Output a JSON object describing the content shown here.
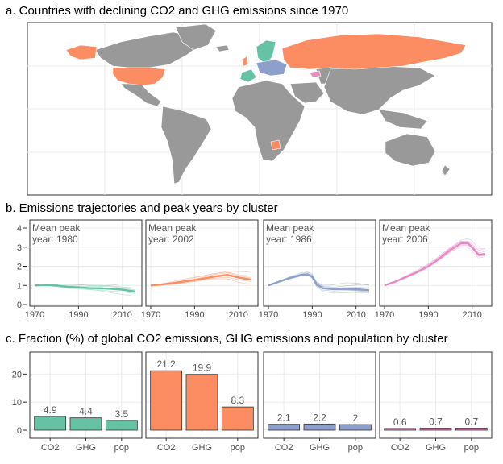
{
  "panel_a": {
    "title": "a. Countries with declining CO2 and GHG emissions since 1970"
  },
  "panel_b": {
    "title": "b. Emissions trajectories and peak years by cluster",
    "peak_label_line1": "Mean peak",
    "x_ticks": [
      "1970",
      "1990",
      "2010"
    ],
    "y_ticks": [
      "0",
      "1",
      "2",
      "3",
      "4"
    ]
  },
  "panel_c": {
    "title": "c. Fraction (%) of global CO2 emissions, GHG emissions and population by cluster",
    "y_ticks": [
      "0",
      "10",
      "20"
    ]
  },
  "colors": {
    "cluster1": "#66c2a5",
    "cluster2": "#fc8d62",
    "cluster3": "#8da0cb",
    "cluster4": "#e78ac3",
    "land": "#999999",
    "grid": "#ebebeb",
    "frame": "#333333"
  },
  "chart_data": [
    {
      "type": "line",
      "panel": "b",
      "x_range": [
        1970,
        2016
      ],
      "ylim": [
        0,
        4
      ],
      "x_ticks": [
        1970,
        1990,
        2010
      ],
      "y_ticks": [
        0,
        1,
        2,
        3,
        4
      ],
      "grid": true,
      "series": [
        {
          "peak_label": "year: 1980",
          "color": "#66c2a5",
          "x": [
            1970,
            1975,
            1980,
            1985,
            1990,
            1995,
            2000,
            2005,
            2010,
            2016
          ],
          "y": [
            1.0,
            1.02,
            1.0,
            0.92,
            0.9,
            0.86,
            0.85,
            0.82,
            0.78,
            0.68
          ]
        },
        {
          "peak_label": "year: 2002",
          "color": "#fc8d62",
          "x": [
            1970,
            1975,
            1980,
            1985,
            1990,
            1995,
            2000,
            2005,
            2010,
            2016
          ],
          "y": [
            1.0,
            1.05,
            1.12,
            1.2,
            1.28,
            1.38,
            1.48,
            1.55,
            1.42,
            1.3
          ]
        },
        {
          "peak_label": "year: 1986",
          "color": "#8da0cb",
          "x": [
            1970,
            1975,
            1980,
            1985,
            1988,
            1990,
            1992,
            1995,
            2000,
            2005,
            2010,
            2016
          ],
          "y": [
            1.0,
            1.2,
            1.4,
            1.55,
            1.58,
            1.45,
            1.05,
            0.85,
            0.8,
            0.82,
            0.8,
            0.75
          ]
        },
        {
          "peak_label": "year: 2006",
          "color": "#e78ac3",
          "x": [
            1970,
            1975,
            1980,
            1985,
            1990,
            1995,
            2000,
            2005,
            2008,
            2010,
            2013,
            2016
          ],
          "y": [
            1.0,
            1.2,
            1.45,
            1.7,
            2.0,
            2.4,
            2.85,
            3.2,
            3.2,
            3.0,
            2.6,
            2.65
          ]
        }
      ]
    },
    {
      "type": "bar",
      "panel": "c",
      "categories": [
        "CO2",
        "GHG",
        "pop"
      ],
      "ylim": [
        0,
        27
      ],
      "y_ticks": [
        0,
        10,
        20
      ],
      "grid": true,
      "series": [
        {
          "color": "#66c2a5",
          "values": [
            4.9,
            4.4,
            3.5
          ],
          "labels": [
            "4.9",
            "4.4",
            "3.5"
          ]
        },
        {
          "color": "#fc8d62",
          "values": [
            21.2,
            19.9,
            8.3
          ],
          "labels": [
            "21.2",
            "19.9",
            "8.3"
          ]
        },
        {
          "color": "#8da0cb",
          "values": [
            2.1,
            2.2,
            2.0
          ],
          "labels": [
            "2.1",
            "2.2",
            "2"
          ]
        },
        {
          "color": "#e78ac3",
          "values": [
            0.6,
            0.7,
            0.7
          ],
          "labels": [
            "0.6",
            "0.7",
            "0.7"
          ]
        }
      ]
    }
  ]
}
